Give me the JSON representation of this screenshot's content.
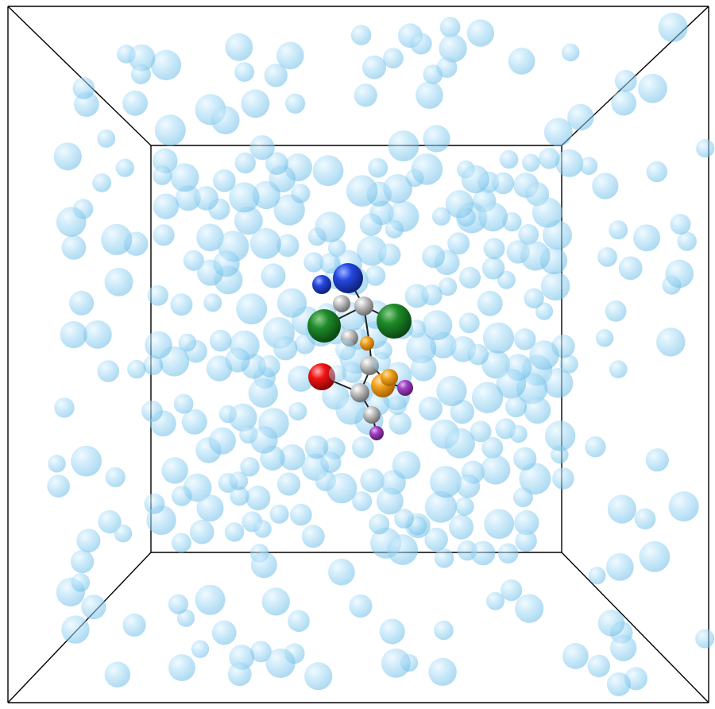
{
  "scene": {
    "background": "#ffffff",
    "box_edge_color": "#000000",
    "solvent_color": "#8fd0f2",
    "solvent_opacity": 0.55,
    "molecule_atom_colors": {
      "carbon": "#a8a8a8",
      "chlorine": "#16781f",
      "nitrogen": "#1d3fd8",
      "oxygen": "#ee1010",
      "phosphorus": "#f2a11b",
      "iodine": "#9a3ab8"
    }
  }
}
